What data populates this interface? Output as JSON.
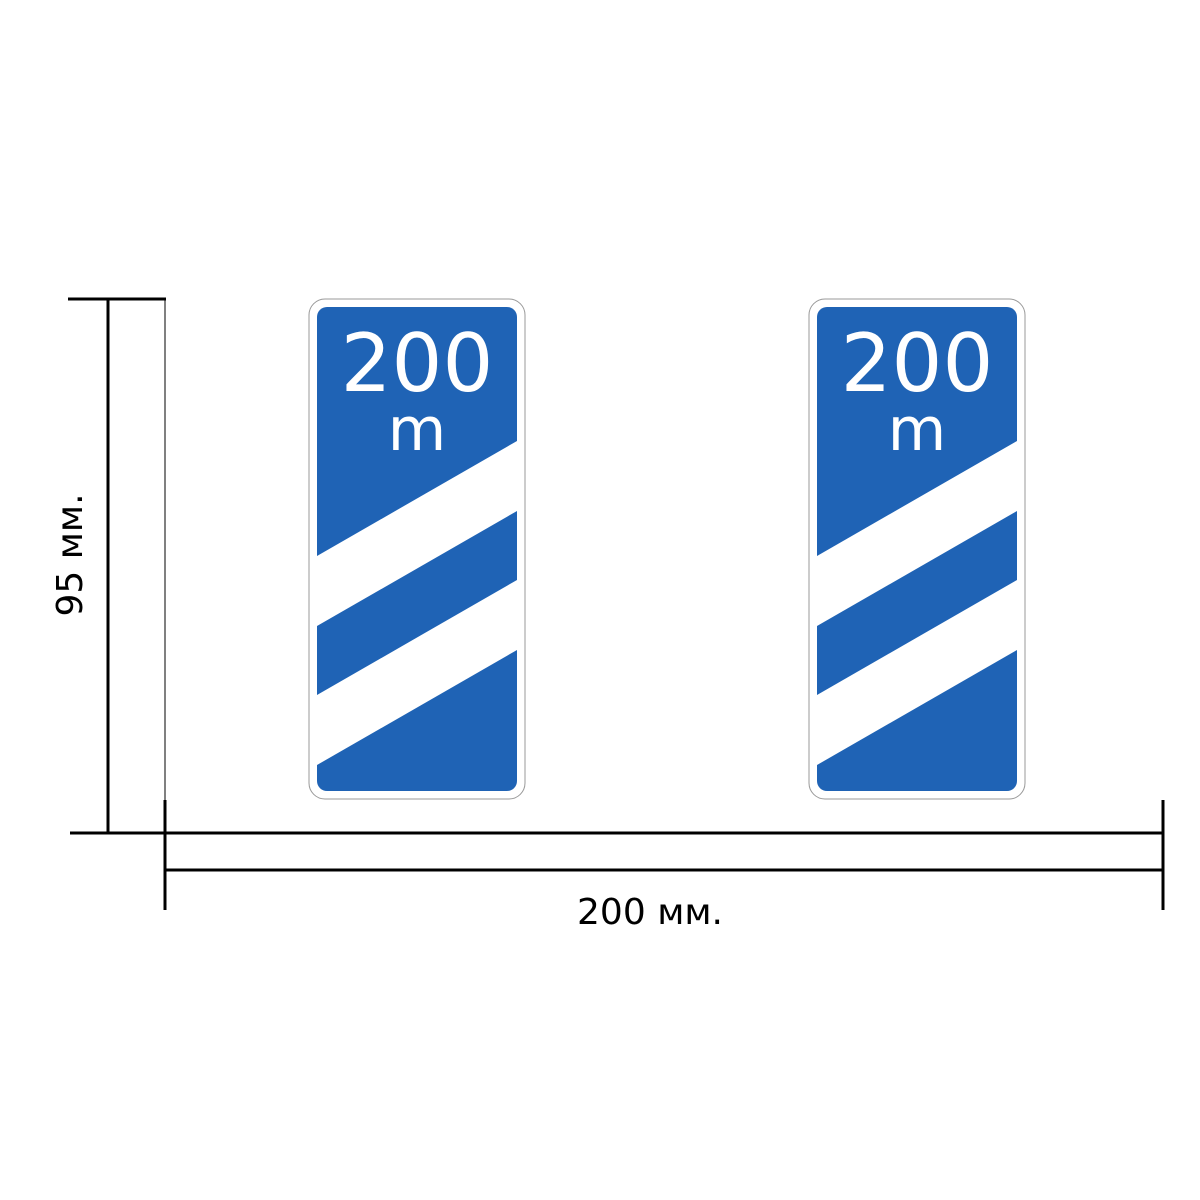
{
  "dimensions": {
    "height_label": "95 мм.",
    "width_label": "200 мм."
  },
  "signs": [
    {
      "distance": "200",
      "unit": "m"
    },
    {
      "distance": "200",
      "unit": "m"
    }
  ],
  "colors": {
    "sign_blue": "#1f63b5",
    "line": "#000000"
  }
}
